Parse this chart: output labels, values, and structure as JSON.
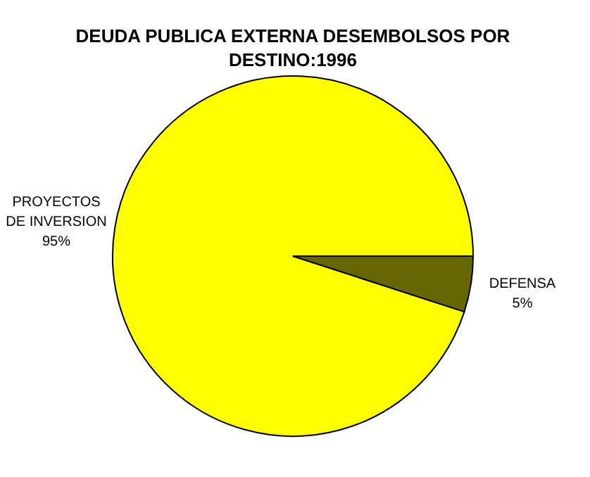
{
  "chart_data": {
    "type": "pie",
    "title": "DEUDA PUBLICA EXTERNA DESEMBOLSOS POR DESTINO:1996",
    "categories": [
      "PROYECTOS DE INVERSION",
      "DEFENSA"
    ],
    "values": [
      95,
      5
    ],
    "colors": [
      "#ffff00",
      "#666600"
    ],
    "value_labels": [
      "95%",
      "5%"
    ]
  }
}
